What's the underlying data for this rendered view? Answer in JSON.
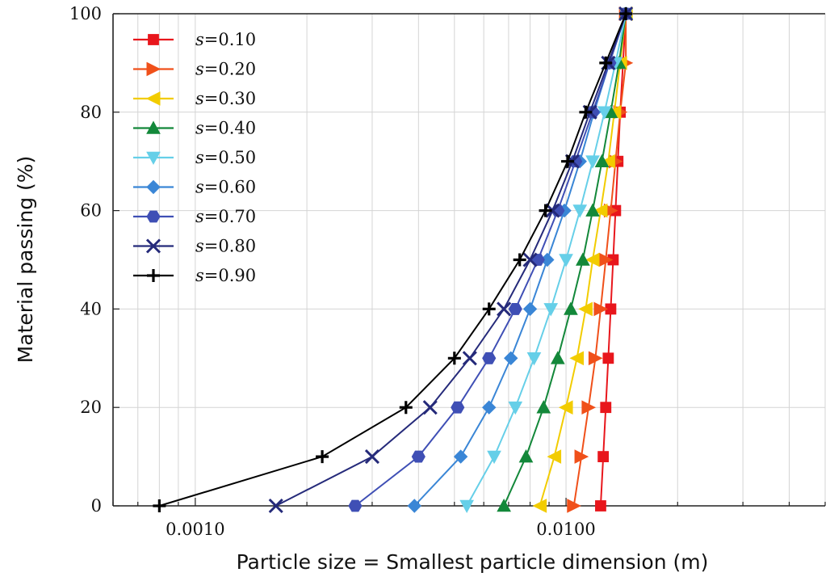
{
  "chart_data": {
    "type": "line",
    "xlabel": "Particle size = Smallest particle dimension (m)",
    "ylabel": "Material passing (%)",
    "x_scale": "log",
    "xlim": [
      0.0006,
      0.05
    ],
    "ylim": [
      0,
      100
    ],
    "x_ticks": [
      {
        "value": 0.001,
        "label": "0.0010"
      },
      {
        "value": 0.01,
        "label": "0.0100"
      }
    ],
    "y_ticks": [
      0,
      20,
      40,
      60,
      80,
      100
    ],
    "grid": true,
    "legend_position": "top-left",
    "legend_prefix": "s",
    "series": [
      {
        "name": "0.10",
        "color": "#e8161c",
        "marker": "square",
        "x": [
          0.0124,
          0.0126,
          0.0128,
          0.013,
          0.0132,
          0.0134,
          0.0136,
          0.0138,
          0.014,
          0.0145
        ],
        "y": [
          0,
          10,
          20,
          30,
          40,
          50,
          60,
          70,
          80,
          100
        ]
      },
      {
        "name": "0.20",
        "color": "#f0501a",
        "marker": "triangle-right",
        "x": [
          0.0105,
          0.011,
          0.0115,
          0.012,
          0.0124,
          0.0128,
          0.0132,
          0.0136,
          0.014,
          0.0145,
          0.0145
        ],
        "y": [
          0,
          10,
          20,
          30,
          40,
          50,
          60,
          70,
          80,
          90,
          100
        ]
      },
      {
        "name": "0.30",
        "color": "#f2cc00",
        "marker": "triangle-left",
        "x": [
          0.0085,
          0.0093,
          0.01,
          0.0107,
          0.0113,
          0.0118,
          0.0124,
          0.013,
          0.0135,
          0.014,
          0.0145
        ],
        "y": [
          0,
          10,
          20,
          30,
          40,
          50,
          60,
          70,
          80,
          90,
          100
        ]
      },
      {
        "name": "0.40",
        "color": "#13883a",
        "marker": "triangle-up",
        "x": [
          0.0068,
          0.0078,
          0.0087,
          0.0095,
          0.0103,
          0.0111,
          0.0118,
          0.0125,
          0.0132,
          0.0139,
          0.0145
        ],
        "y": [
          0,
          10,
          20,
          30,
          40,
          50,
          60,
          70,
          80,
          90,
          100
        ]
      },
      {
        "name": "0.50",
        "color": "#66cfe8",
        "marker": "triangle-down",
        "x": [
          0.0054,
          0.0064,
          0.0073,
          0.0082,
          0.0091,
          0.01,
          0.0109,
          0.0118,
          0.0127,
          0.0136,
          0.0145
        ],
        "y": [
          0,
          10,
          20,
          30,
          40,
          50,
          60,
          70,
          80,
          90,
          100
        ]
      },
      {
        "name": "0.60",
        "color": "#3a86d6",
        "marker": "diamond",
        "x": [
          0.0039,
          0.0052,
          0.0062,
          0.0071,
          0.008,
          0.0089,
          0.0099,
          0.0109,
          0.0119,
          0.0131,
          0.0145
        ],
        "y": [
          0,
          10,
          20,
          30,
          40,
          50,
          60,
          70,
          80,
          90,
          100
        ]
      },
      {
        "name": "0.70",
        "color": "#3f4fb5",
        "marker": "hexagon",
        "x": [
          0.0027,
          0.004,
          0.0051,
          0.0062,
          0.0073,
          0.0084,
          0.0095,
          0.0106,
          0.0118,
          0.0131,
          0.0145
        ],
        "y": [
          0,
          10,
          20,
          30,
          40,
          50,
          60,
          70,
          80,
          90,
          100
        ]
      },
      {
        "name": "0.80",
        "color": "#252a7a",
        "marker": "x",
        "x": [
          0.00165,
          0.003,
          0.0043,
          0.0055,
          0.0068,
          0.008,
          0.0092,
          0.0104,
          0.0116,
          0.013,
          0.0145
        ],
        "y": [
          0,
          10,
          20,
          30,
          40,
          50,
          60,
          70,
          80,
          90,
          100
        ]
      },
      {
        "name": "0.90",
        "color": "#000000",
        "marker": "plus",
        "x": [
          0.0008,
          0.0022,
          0.0037,
          0.005,
          0.0062,
          0.0075,
          0.0088,
          0.0101,
          0.0113,
          0.0128,
          0.0145
        ],
        "y": [
          0,
          10,
          20,
          30,
          40,
          50,
          60,
          70,
          80,
          90,
          100
        ]
      }
    ]
  }
}
